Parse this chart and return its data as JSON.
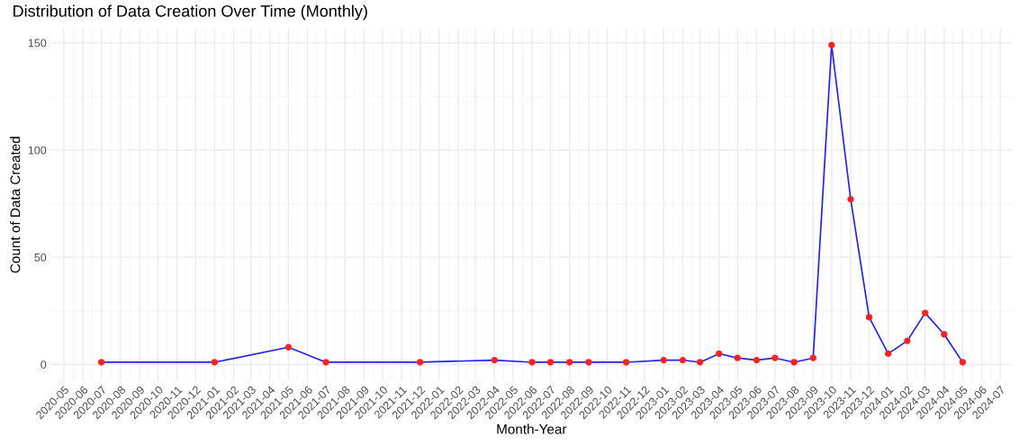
{
  "chart_data": {
    "type": "line",
    "title": "Distribution of Data Creation Over Time (Monthly)",
    "xlabel": "Month-Year",
    "ylabel": "Count of Data Created",
    "x": [
      "2020-07",
      "2021-01",
      "2021-05",
      "2021-07",
      "2021-12",
      "2022-04",
      "2022-06",
      "2022-07",
      "2022-08",
      "2022-09",
      "2022-11",
      "2023-01",
      "2023-02",
      "2023-03",
      "2023-04",
      "2023-05",
      "2023-06",
      "2023-07",
      "2023-08",
      "2023-09",
      "2023-10",
      "2023-11",
      "2023-12",
      "2024-01",
      "2024-02",
      "2024-03",
      "2024-04",
      "2024-05"
    ],
    "series": [
      {
        "type": "line",
        "color": "#2222ee",
        "marker": "none",
        "values": [
          1,
          1,
          8,
          1,
          1,
          2,
          1,
          1,
          1,
          1,
          1,
          2,
          2,
          1,
          5,
          3,
          2,
          3,
          1,
          3,
          149,
          77,
          22,
          5,
          11,
          24,
          14,
          1
        ]
      },
      {
        "type": "scatter",
        "color": "#ff2020",
        "marker": "circle",
        "values": [
          1,
          1,
          8,
          1,
          1,
          2,
          1,
          1,
          1,
          1,
          1,
          2,
          2,
          1,
          5,
          3,
          2,
          3,
          1,
          3,
          149,
          77,
          22,
          5,
          11,
          24,
          14,
          1
        ]
      }
    ],
    "xlim": [
      "2020-04-10",
      "2024-07-20"
    ],
    "xticks": [
      "2020-05",
      "2020-06",
      "2020-07",
      "2020-08",
      "2020-09",
      "2020-10",
      "2020-11",
      "2020-12",
      "2021-01",
      "2021-02",
      "2021-03",
      "2021-04",
      "2021-05",
      "2021-06",
      "2021-07",
      "2021-08",
      "2021-09",
      "2021-10",
      "2021-11",
      "2021-12",
      "2022-01",
      "2022-02",
      "2022-03",
      "2022-04",
      "2022-05",
      "2022-06",
      "2022-07",
      "2022-08",
      "2022-09",
      "2022-10",
      "2022-11",
      "2022-12",
      "2023-01",
      "2023-02",
      "2023-03",
      "2023-04",
      "2023-05",
      "2023-06",
      "2023-07",
      "2023-08",
      "2023-09",
      "2023-10",
      "2023-11",
      "2023-12",
      "2024-01",
      "2024-02",
      "2024-03",
      "2024-04",
      "2024-05",
      "2024-06",
      "2024-07"
    ],
    "ylim": [
      -7.5,
      156.5
    ],
    "yticks": [
      0,
      50,
      100,
      150
    ],
    "grid": true
  }
}
